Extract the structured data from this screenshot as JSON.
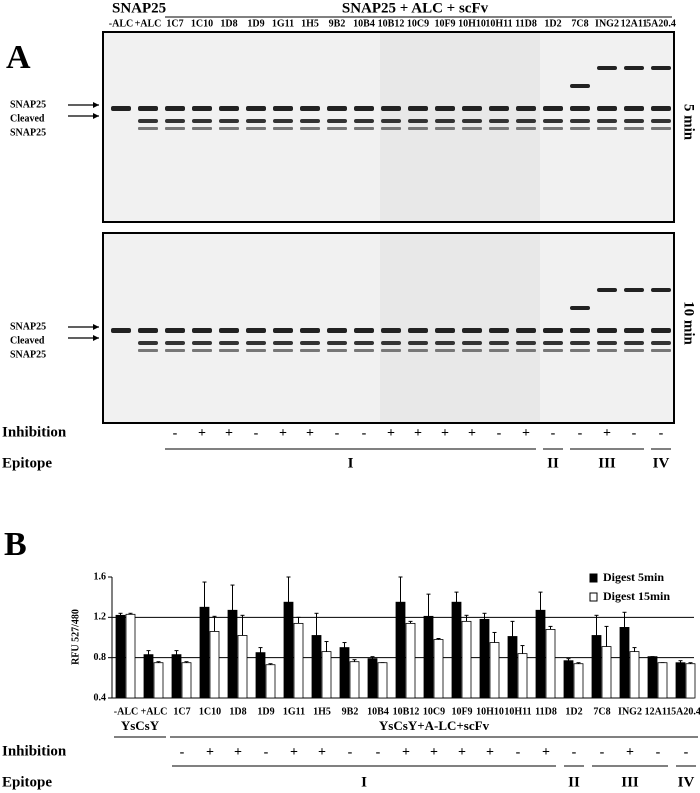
{
  "panel_a": {
    "label": "A",
    "header_left": "SNAP25",
    "header_right": "SNAP25 + ALC + scFv",
    "lanes": [
      "-ALC",
      "+ALC",
      "1C7",
      "1C10",
      "1D8",
      "1D9",
      "1G11",
      "1H5",
      "9B2",
      "10B4",
      "10B12",
      "10C9",
      "10F9",
      "10H10",
      "10H11",
      "11D8",
      "1D2",
      "7C8",
      "ING2",
      "12A11",
      "5A20.4"
    ],
    "band_labels": [
      "SNAP25",
      "Cleaved",
      "SNAP25"
    ],
    "gels": [
      {
        "time": "5 min"
      },
      {
        "time": "10 min"
      }
    ],
    "inhibition_label": "Inhibition",
    "inhibition": [
      null,
      null,
      "-",
      "+",
      "+",
      "-",
      "+",
      "+",
      "-",
      "-",
      "+",
      "+",
      "+",
      "+",
      "-",
      "+",
      "-",
      "-",
      "+",
      "-",
      "-"
    ],
    "epitope_label": "Epitope",
    "epitopes": [
      "I",
      "II",
      "III",
      "IV"
    ]
  },
  "chart_data": {
    "type": "bar",
    "label": "B",
    "y_label": "RFU 527/480",
    "categories": [
      "-ALC",
      "+ALC",
      "1C7",
      "1C10",
      "1D8",
      "1D9",
      "1G11",
      "1H5",
      "9B2",
      "10B4",
      "10B12",
      "10C9",
      "10F9",
      "10H10",
      "10H11",
      "11D8",
      "1D2",
      "7C8",
      "ING2",
      "12A11",
      "5A20.4"
    ],
    "series": [
      {
        "name": "Digest 5min",
        "color": "#000000",
        "values": [
          1.22,
          0.83,
          0.83,
          1.3,
          1.27,
          0.85,
          1.35,
          1.02,
          0.9,
          0.79,
          1.35,
          1.21,
          1.35,
          1.18,
          1.01,
          1.27,
          0.77,
          1.02,
          1.1,
          0.81,
          0.75
        ],
        "errors": [
          0.02,
          0.04,
          0.04,
          0.25,
          0.25,
          0.05,
          0.25,
          0.22,
          0.05,
          0.02,
          0.25,
          0.22,
          0.1,
          0.06,
          0.15,
          0.18,
          0.02,
          0.2,
          0.15,
          0,
          0.02
        ]
      },
      {
        "name": "Digest 15min",
        "color": "#ffffff",
        "values": [
          1.23,
          0.75,
          0.75,
          1.06,
          1.02,
          0.73,
          1.14,
          0.86,
          0.76,
          0.75,
          1.14,
          0.98,
          1.16,
          0.95,
          0.84,
          1.08,
          0.74,
          0.91,
          0.86,
          0.75,
          0.74
        ],
        "errors": [
          0.01,
          0.01,
          0.01,
          0.15,
          0.2,
          0.01,
          0.06,
          0.1,
          0.02,
          0,
          0.02,
          0.01,
          0.06,
          0.1,
          0.08,
          0.03,
          0.01,
          0.2,
          0.04,
          0,
          0.01
        ]
      }
    ],
    "ylim": [
      0.4,
      1.6
    ],
    "yticks": [
      0.4,
      0.8,
      1.2,
      1.6
    ],
    "reference_lines": [
      0.8,
      1.2
    ],
    "legend": "upper right",
    "group_labels": [
      "YsCsY",
      "YsCsY+A-LC+scFv"
    ],
    "inhibition_label": "Inhibition",
    "inhibition": [
      null,
      null,
      "-",
      "+",
      "+",
      "-",
      "+",
      "+",
      "-",
      "-",
      "+",
      "+",
      "+",
      "+",
      "-",
      "+",
      "-",
      "-",
      "+",
      "-",
      "-"
    ],
    "epitope_label": "Epitope",
    "epitopes": [
      "I",
      "II",
      "III",
      "IV"
    ]
  }
}
